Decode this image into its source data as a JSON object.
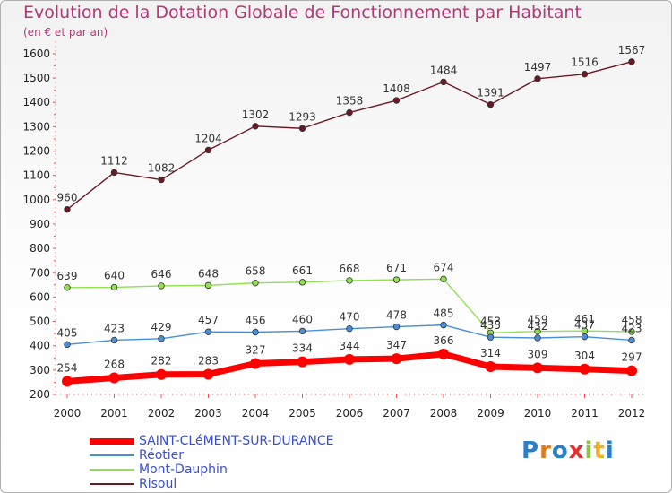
{
  "title": "Evolution de la Dotation Globale de Fonctionnement par Habitant",
  "subtitle": "(en € et par an)",
  "logo": "Proxiti",
  "chart_data": {
    "type": "line",
    "title": "Evolution de la Dotation Globale de Fonctionnement par Habitant",
    "subtitle": "(en € et par an)",
    "xlabel": "",
    "ylabel": "",
    "x": [
      "2000",
      "2001",
      "2002",
      "2003",
      "2004",
      "2005",
      "2006",
      "2007",
      "2008",
      "2009",
      "2010",
      "2011",
      "2012"
    ],
    "ylim": [
      200,
      1650
    ],
    "yticks": [
      200,
      300,
      400,
      500,
      600,
      700,
      800,
      900,
      1000,
      1100,
      1200,
      1300,
      1400,
      1500,
      1600
    ],
    "grid": false,
    "legend_position": "bottom-left",
    "series": [
      {
        "name": "SAINT-CLéMENT-SUR-DURANCE",
        "color": "#ff0000",
        "values": [
          254,
          268,
          282,
          283,
          327,
          334,
          344,
          347,
          366,
          314,
          309,
          304,
          297
        ]
      },
      {
        "name": "Réotier",
        "color": "#4a8ed8",
        "values": [
          405,
          423,
          429,
          457,
          456,
          460,
          470,
          478,
          485,
          435,
          432,
          437,
          423
        ]
      },
      {
        "name": "Mont-Dauphin",
        "color": "#90e050",
        "values": [
          639,
          640,
          646,
          648,
          658,
          661,
          668,
          671,
          674,
          453,
          459,
          461,
          458
        ]
      },
      {
        "name": "Risoul",
        "color": "#6b1a24",
        "values": [
          960,
          1112,
          1082,
          1204,
          1302,
          1293,
          1358,
          1408,
          1484,
          1391,
          1497,
          1516,
          1567
        ]
      }
    ]
  }
}
